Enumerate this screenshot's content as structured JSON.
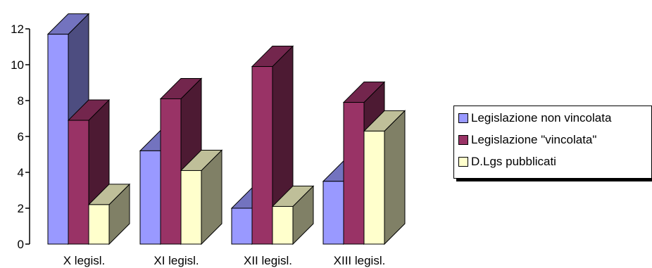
{
  "chart_data": {
    "type": "bar",
    "categories": [
      "X legisl.",
      "XI legisl.",
      "XII legisl.",
      "XIII legisl."
    ],
    "series": [
      {
        "name": "Legislazione non vincolata",
        "values": [
          11.7,
          5.2,
          2.0,
          3.5
        ],
        "color": "#9999FF"
      },
      {
        "name": "Legislazione \"vincolata\"",
        "values": [
          6.9,
          8.1,
          9.9,
          7.9
        ],
        "color": "#993366"
      },
      {
        "name": "D.Lgs pubblicati",
        "values": [
          2.2,
          4.1,
          2.1,
          6.3
        ],
        "color": "#FFFFCC"
      }
    ],
    "yticks": [
      "0",
      "2",
      "4",
      "6",
      "8",
      "10",
      "12"
    ],
    "ylim": [
      0,
      12
    ],
    "style": "3d-clustered-column",
    "legend_position": "right"
  }
}
